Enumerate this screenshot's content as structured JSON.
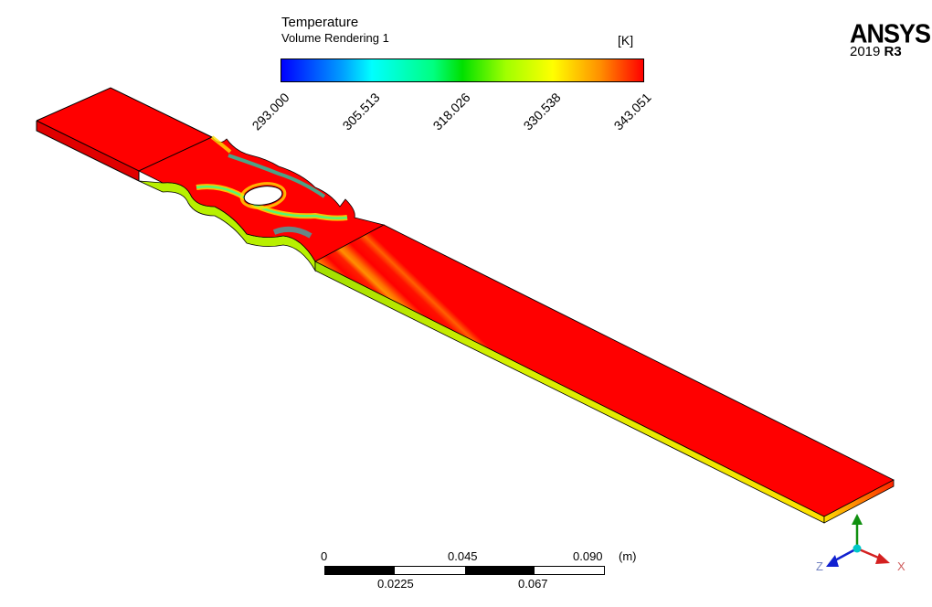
{
  "legend": {
    "title": "Temperature",
    "subtitle": "Volume Rendering 1",
    "unit": "[K]",
    "ticks": [
      "293.000",
      "305.513",
      "318.026",
      "330.538",
      "343.051"
    ],
    "range_k": [
      293.0,
      343.051
    ],
    "colormap": [
      "#0000ff",
      "#00ffff",
      "#00e000",
      "#ffff00",
      "#ff0000"
    ]
  },
  "branding": {
    "product": "ANSYS",
    "version_year": "2019",
    "version_release": "R3"
  },
  "scale": {
    "top_labels": [
      "0",
      "0.045",
      "0.090"
    ],
    "unit": "(m)",
    "bottom_labels": [
      "0.0225",
      "0.067"
    ]
  },
  "axes": {
    "x_label": "X",
    "z_label": "Z",
    "colors": {
      "x": "#d42020",
      "y": "#109010",
      "z": "#1020d0",
      "origin": "#00c8c8"
    }
  }
}
